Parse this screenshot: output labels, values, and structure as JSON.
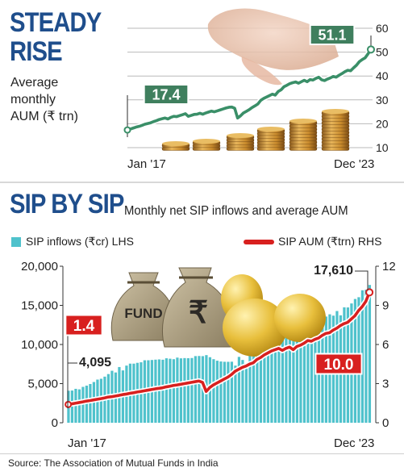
{
  "chart_data": [
    {
      "type": "line",
      "title": "STEADY RISE",
      "title_lines": [
        "STEADY",
        "RISE"
      ],
      "subtitle_lines": [
        "Average",
        "monthly",
        "AUM (₹ trn)"
      ],
      "x_start_label": "Jan '17",
      "x_end_label": "Dec '23",
      "y_ticks": [
        "10",
        "20",
        "30",
        "40",
        "50",
        "60"
      ],
      "ylim": [
        10,
        60
      ],
      "grid": true,
      "start_value": 17.4,
      "end_value": 51.1,
      "start_label": "17.4",
      "end_label": "51.1",
      "series": [
        {
          "values": [
            17.4,
            17.8,
            18.2,
            18.6,
            18.9,
            19.3,
            19.8,
            20.1,
            20.4,
            20.9,
            21.3,
            21.8,
            22.1,
            22.4,
            22.0,
            22.7,
            23.1,
            23.0,
            23.4,
            23.8,
            24.2,
            23.1,
            23.5,
            23.9,
            24.0,
            24.4,
            24.0,
            24.5,
            24.9,
            25.3,
            25.0,
            25.4,
            25.8,
            26.2,
            26.6,
            26.9,
            27.0,
            26.5,
            22.4,
            23.3,
            24.5,
            25.2,
            25.9,
            26.8,
            27.5,
            28.3,
            29.8,
            30.6,
            31.2,
            31.8,
            32.4,
            32.0,
            33.5,
            34.2,
            35.5,
            36.1,
            36.8,
            37.2,
            37.5,
            37.0,
            37.6,
            38.2,
            37.6,
            38.5,
            38.3,
            39.0,
            39.5,
            38.4,
            38.1,
            38.7,
            39.2,
            39.8,
            39.5,
            40.3,
            41.0,
            41.8,
            42.4,
            42.2,
            43.4,
            44.5,
            46.0,
            46.9,
            47.6,
            49.3,
            51.1
          ]
        }
      ]
    },
    {
      "type": "bar",
      "title": "SIP BY SIP",
      "subtitle": "Monthly net SIP inflows and average AUM",
      "x_start_label": "Jan '17",
      "x_end_label": "Dec '23",
      "left_axis": {
        "ticks": [
          "0",
          "5,000",
          "10,000",
          "15,000",
          "20,000"
        ],
        "ylim": [
          0,
          20000
        ]
      },
      "right_axis": {
        "ticks": [
          "0",
          "3",
          "6",
          "9",
          "12"
        ],
        "ylim": [
          0,
          12
        ]
      },
      "legend": {
        "bars": "SIP inflows (₹cr) LHS",
        "line": "SIP AUM (₹trn) RHS",
        "bars_color": "#4fc2cc",
        "line_color": "#d8201f"
      },
      "annotations": {
        "bar_start": "4,095",
        "bar_end": "17,610",
        "line_start": "1.4",
        "line_end": "10.0"
      },
      "series": [
        {
          "name": "SIP inflows (₹cr) LHS",
          "kind": "bar",
          "values": [
            4095,
            4117,
            4335,
            4269,
            4584,
            4744,
            4947,
            5206,
            5516,
            5621,
            5893,
            6222,
            6644,
            6425,
            7119,
            6690,
            7304,
            7554,
            7554,
            7658,
            7727,
            7985,
            7985,
            8022,
            8064,
            8095,
            8055,
            8238,
            8183,
            8122,
            8324,
            8231,
            8263,
            8246,
            8273,
            8518,
            8532,
            8513,
            8641,
            8376,
            8123,
            7927,
            7831,
            7792,
            7788,
            7800,
            7302,
            8418,
            8023,
            7528,
            9182,
            8596,
            8819,
            9156,
            9609,
            9923,
            10351,
            10519,
            11305,
            11614,
            11517,
            11438,
            12328,
            11863,
            12286,
            12276,
            12140,
            12693,
            12976,
            13041,
            13307,
            13573,
            13856,
            13686,
            14276,
            13728,
            14749,
            14734,
            15245,
            15814,
            16042,
            16928,
            17000,
            17610
          ]
        },
        {
          "name": "SIP AUM (₹trn) RHS",
          "kind": "line",
          "values": [
            1.4,
            1.45,
            1.5,
            1.55,
            1.6,
            1.66,
            1.7,
            1.75,
            1.8,
            1.85,
            1.9,
            1.97,
            2.0,
            2.05,
            2.1,
            2.16,
            2.2,
            2.26,
            2.3,
            2.36,
            2.4,
            2.45,
            2.5,
            2.55,
            2.6,
            2.64,
            2.68,
            2.75,
            2.8,
            2.86,
            2.9,
            2.95,
            3.0,
            3.05,
            3.1,
            3.15,
            3.2,
            3.1,
            2.4,
            2.7,
            2.9,
            3.05,
            3.2,
            3.35,
            3.5,
            3.7,
            3.95,
            4.1,
            4.25,
            4.35,
            4.5,
            4.6,
            4.85,
            5.0,
            5.2,
            5.35,
            5.5,
            5.6,
            5.7,
            5.55,
            5.7,
            5.8,
            5.6,
            5.85,
            5.95,
            6.1,
            6.3,
            6.25,
            6.4,
            6.5,
            6.7,
            6.85,
            6.9,
            7.1,
            7.25,
            7.45,
            7.6,
            7.7,
            7.95,
            8.2,
            8.6,
            8.9,
            9.3,
            10.0
          ]
        }
      ]
    }
  ],
  "source": "Source: The Association of Mutual Funds in India",
  "illustrations": {
    "chart1": [
      "hand-icon",
      "coin-stacks"
    ],
    "chart2": [
      "fund-bag-icon",
      "rupee-bag-icon",
      "gold-eggs"
    ],
    "fund_bag_text": "FUND",
    "rupee_bag_text": "₹"
  },
  "colors": {
    "headline": "#1f4e8c",
    "chart1_line": "#3a8f68",
    "chart1_label_bg": "#3f7f5e",
    "bars": "#4fc2cc",
    "aum_line": "#d8201f"
  }
}
